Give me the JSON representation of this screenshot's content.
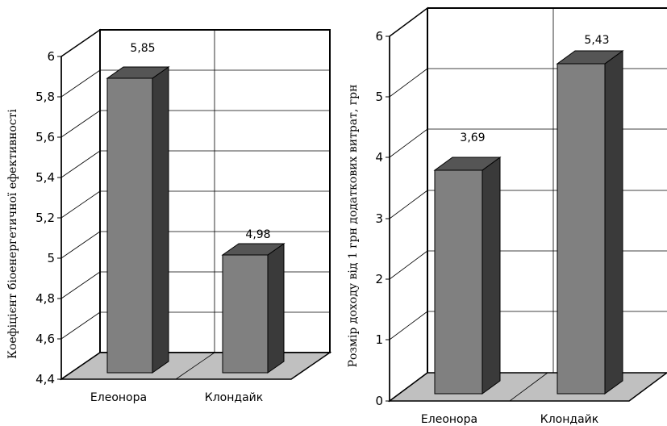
{
  "chart_data": [
    {
      "type": "bar",
      "title": "",
      "xlabel": "",
      "ylabel": "Коефіцієнт біоенергетичної ефективності",
      "categories": [
        "Елеонора",
        "Клондайк"
      ],
      "series": [
        {
          "values": [
            5.85,
            4.98
          ]
        }
      ],
      "data_labels": [
        "5,85",
        "4,98"
      ],
      "ylim": [
        4.4,
        6
      ],
      "yticks": [
        "4,4",
        "4,6",
        "4,8",
        "5",
        "5,2",
        "5,4",
        "5,6",
        "5,8",
        "6"
      ],
      "grid": true,
      "style": "3d",
      "bar_color": "#808080",
      "bar_side_color": "#3a3a3a",
      "bar_top_color": "#555555",
      "floor_color": "#c0c0c0"
    },
    {
      "type": "bar",
      "title": "",
      "xlabel": "",
      "ylabel": "Розмір доходу від 1 грн додаткових витрат, грн",
      "categories": [
        "Елеонора",
        "Клондайк"
      ],
      "series": [
        {
          "values": [
            3.69,
            5.43
          ]
        }
      ],
      "data_labels": [
        "3,69",
        "5,43"
      ],
      "ylim": [
        0,
        6
      ],
      "yticks": [
        "0",
        "1",
        "2",
        "3",
        "4",
        "5",
        "6"
      ],
      "grid": true,
      "style": "3d",
      "bar_color": "#808080",
      "bar_side_color": "#3a3a3a",
      "bar_top_color": "#555555",
      "floor_color": "#c0c0c0"
    }
  ]
}
